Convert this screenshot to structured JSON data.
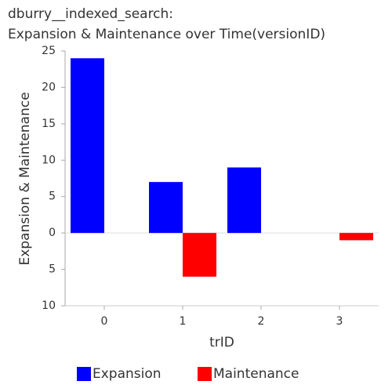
{
  "chart_data": {
    "type": "bar",
    "title": [
      "dburry__indexed_search:",
      "Expansion & Maintenance over Time(versionID)"
    ],
    "x_label": "trID",
    "y_label": "Expansion & Maintenance",
    "categories": [
      "0",
      "1",
      "2",
      "3"
    ],
    "series": [
      {
        "name": "Expansion",
        "color": "#0000ff",
        "values": [
          24,
          7,
          9,
          0
        ]
      },
      {
        "name": "Maintenance",
        "color": "#ff0000",
        "values": [
          0,
          -6,
          0,
          -1
        ]
      }
    ],
    "ylim": [
      -10,
      25
    ],
    "yticks": [
      {
        "value": -10,
        "label": "10"
      },
      {
        "value": -5,
        "label": "5"
      },
      0,
      5,
      10,
      15,
      20,
      25
    ],
    "legend": "bottom"
  }
}
